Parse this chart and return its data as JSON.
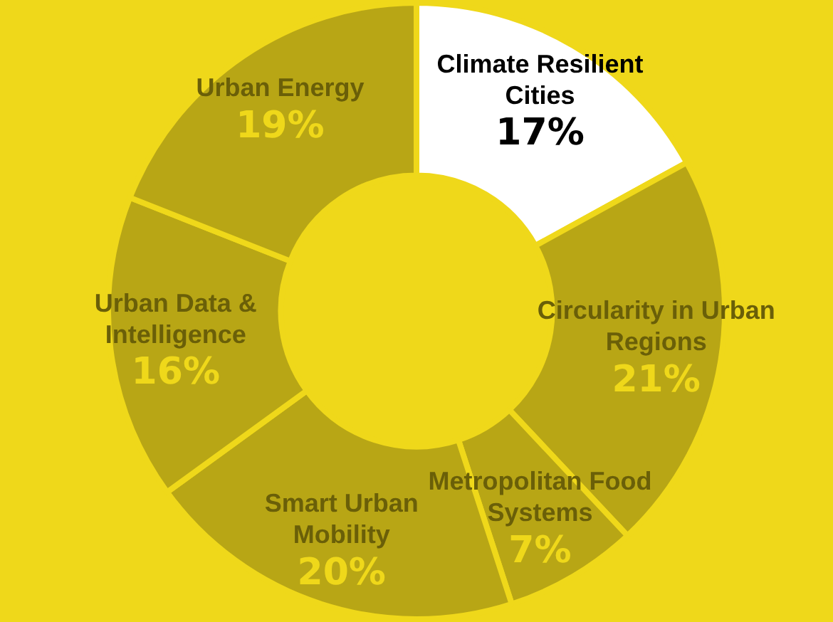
{
  "chart_data": {
    "type": "donut",
    "categories": [
      "Climate Resilient Cities",
      "Circularity in Urban Regions",
      "Metropolitan Food Systems",
      "Smart Urban Mobility",
      "Urban Data & Intelligence",
      "Urban Energy"
    ],
    "values": [
      17,
      21,
      7,
      20,
      16,
      19
    ],
    "value_labels": [
      "17%",
      "21%",
      "7%",
      "20%",
      "16%",
      "19%"
    ],
    "colors": [
      "#ffffff",
      "#b8a615",
      "#b8a615",
      "#b8a615",
      "#b8a615",
      "#b8a615"
    ],
    "legend": false
  }
}
